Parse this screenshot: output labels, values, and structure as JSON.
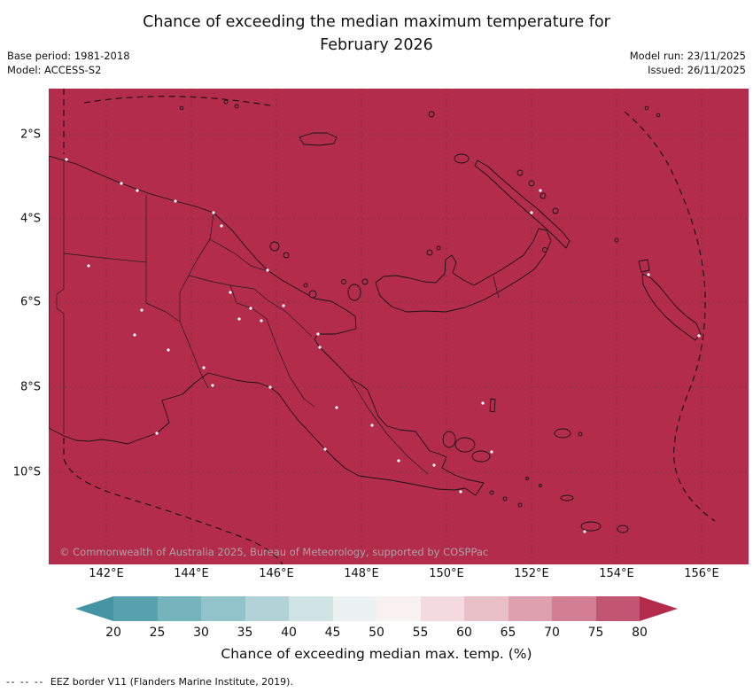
{
  "header": {
    "title_line1": "Chance of exceeding the median maximum temperature for",
    "title_line2": "February 2026",
    "base_period": "Base period: 1981-2018",
    "model": "Model: ACCESS-S2",
    "model_run": "Model run: 23/11/2025",
    "issued": "Issued: 26/11/2025"
  },
  "map": {
    "fill_color": "#b42c4c",
    "copyright": "© Commonwealth of Australia 2025, Bureau of Meteorology, supported by COSPPac",
    "lat_ticks": [
      "2°S",
      "4°S",
      "6°S",
      "8°S",
      "10°S"
    ],
    "lon_ticks": [
      "142°E",
      "144°E",
      "146°E",
      "148°E",
      "150°E",
      "152°E",
      "154°E",
      "156°E"
    ]
  },
  "colorbar": {
    "ticks": [
      20,
      25,
      30,
      35,
      40,
      45,
      50,
      55,
      60,
      65,
      70,
      75,
      80
    ],
    "segment_colors": [
      "#58a2b0",
      "#75b3bd",
      "#93c3ca",
      "#b1d2d6",
      "#cfe2e4",
      "#ecf2f2",
      "#f8f0f1",
      "#f2dade",
      "#e9bfc8",
      "#de9fae",
      "#d27f93",
      "#c25672"
    ],
    "left_arrow_color": "#4494a4",
    "right_arrow_color": "#b42c4c",
    "label": "Chance of exceeding median max. temp. (%)"
  },
  "footer": {
    "eez_symbol": "--  --  --",
    "eez_text": "EEZ border V11 (Flanders Marine Institute, 2019)."
  },
  "chart_data": {
    "type": "heatmap",
    "title": "Chance of exceeding the median maximum temperature for February 2026",
    "value_label": "Chance of exceeding median max. temp. (%)",
    "colorbar_ticks": [
      20,
      25,
      30,
      35,
      40,
      45,
      50,
      55,
      60,
      65,
      70,
      75,
      80
    ],
    "colorbar_range_extended": "arrows below 20 and above 80",
    "x_axis_ticks": [
      "142°E",
      "144°E",
      "146°E",
      "148°E",
      "150°E",
      "152°E",
      "154°E",
      "156°E"
    ],
    "y_axis_ticks": [
      "2°S",
      "4°S",
      "6°S",
      "8°S",
      "10°S"
    ],
    "observed_values": "uniform dark red over the entire mapped region, corresponding to > 80% chance"
  }
}
